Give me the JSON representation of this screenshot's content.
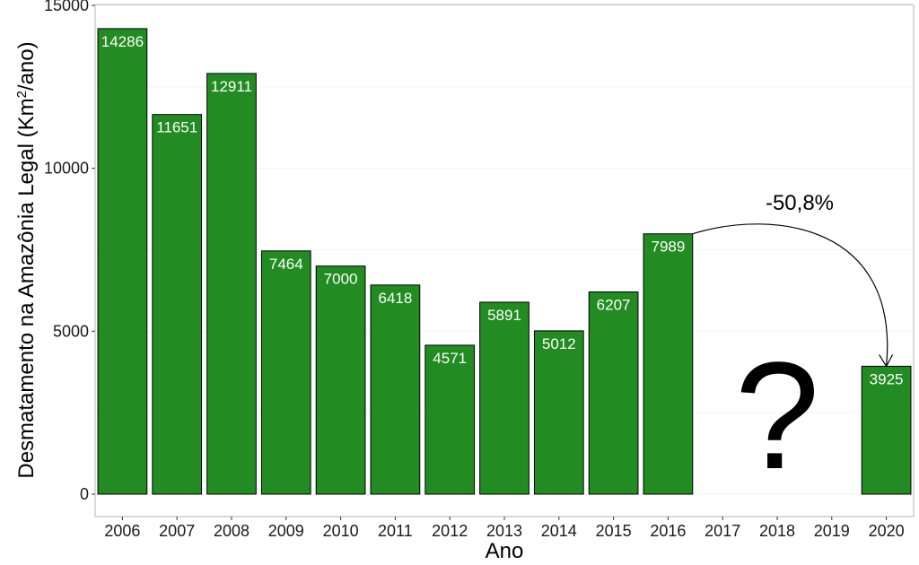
{
  "chart_data": {
    "type": "bar",
    "categories": [
      "2006",
      "2007",
      "2008",
      "2009",
      "2010",
      "2011",
      "2012",
      "2013",
      "2014",
      "2015",
      "2016",
      "2017",
      "2018",
      "2019",
      "2020"
    ],
    "values": [
      14286,
      11651,
      12911,
      7464,
      7000,
      6418,
      4571,
      5891,
      5012,
      6207,
      7989,
      null,
      null,
      null,
      3925
    ],
    "data_labels": [
      "14286",
      "11651",
      "12911",
      "7464",
      "7000",
      "6418",
      "4571",
      "5891",
      "5012",
      "6207",
      "7989",
      "",
      "",
      "",
      "3925"
    ],
    "bar_color": "#228B22",
    "xlabel": "Ano",
    "ylabel_main": "Desmatamento na Amazônia Legal  (Km",
    "ylabel_sup": "2",
    "ylabel_tail": "/ano)",
    "ylim": [
      0,
      15000
    ],
    "yticks": [
      0,
      5000,
      10000,
      15000
    ],
    "grid": "faint horizontal",
    "annotations": {
      "change_label": "-50,8%",
      "change_from": "2016",
      "change_to": "2020",
      "unknown_mark": "?",
      "unknown_at": "2018"
    }
  }
}
